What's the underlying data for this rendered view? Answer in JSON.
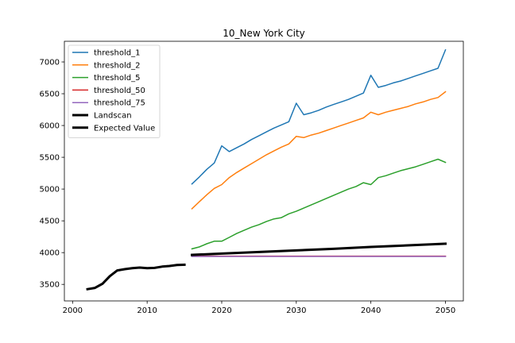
{
  "chart_data": {
    "type": "line",
    "title": "10_New York City",
    "xlabel": "",
    "ylabel": "",
    "xlim": [
      1998.9,
      2052.4
    ],
    "ylim": [
      3240,
      7325
    ],
    "xticks": [
      2000,
      2010,
      2020,
      2030,
      2040,
      2050
    ],
    "yticks": [
      3500,
      4000,
      4500,
      5000,
      5500,
      6000,
      6500,
      7000
    ],
    "grid": false,
    "legend_position": "top-left",
    "series": [
      {
        "name": "threshold_1",
        "color": "#1f77b4",
        "width": 1.5,
        "x": [
          2016,
          2017,
          2018,
          2019,
          2020,
          2021,
          2022,
          2023,
          2024,
          2025,
          2026,
          2027,
          2028,
          2029,
          2030,
          2031,
          2032,
          2033,
          2034,
          2035,
          2036,
          2037,
          2038,
          2039,
          2040,
          2041,
          2042,
          2043,
          2044,
          2045,
          2046,
          2047,
          2048,
          2049,
          2050
        ],
        "y": [
          5080,
          5190,
          5310,
          5410,
          5680,
          5590,
          5650,
          5710,
          5780,
          5840,
          5900,
          5960,
          6010,
          6060,
          6350,
          6170,
          6200,
          6240,
          6290,
          6330,
          6370,
          6410,
          6460,
          6510,
          6790,
          6600,
          6630,
          6670,
          6700,
          6740,
          6780,
          6820,
          6860,
          6900,
          7190
        ]
      },
      {
        "name": "threshold_2",
        "color": "#ff7f0e",
        "width": 1.5,
        "x": [
          2016,
          2017,
          2018,
          2019,
          2020,
          2021,
          2022,
          2023,
          2024,
          2025,
          2026,
          2027,
          2028,
          2029,
          2030,
          2031,
          2032,
          2033,
          2034,
          2035,
          2036,
          2037,
          2038,
          2039,
          2040,
          2041,
          2042,
          2043,
          2044,
          2045,
          2046,
          2047,
          2048,
          2049,
          2050
        ],
        "y": [
          4690,
          4800,
          4910,
          5010,
          5070,
          5180,
          5260,
          5330,
          5400,
          5470,
          5540,
          5600,
          5660,
          5710,
          5830,
          5810,
          5850,
          5880,
          5920,
          5960,
          6000,
          6040,
          6080,
          6120,
          6210,
          6170,
          6210,
          6240,
          6270,
          6300,
          6340,
          6370,
          6410,
          6440,
          6530
        ]
      },
      {
        "name": "threshold_5",
        "color": "#2ca02c",
        "width": 1.5,
        "x": [
          2016,
          2017,
          2018,
          2019,
          2020,
          2021,
          2022,
          2023,
          2024,
          2025,
          2026,
          2027,
          2028,
          2029,
          2030,
          2031,
          2032,
          2033,
          2034,
          2035,
          2036,
          2037,
          2038,
          2039,
          2040,
          2041,
          2042,
          2043,
          2044,
          2045,
          2046,
          2047,
          2048,
          2049,
          2050
        ],
        "y": [
          4060,
          4090,
          4140,
          4180,
          4180,
          4240,
          4300,
          4350,
          4400,
          4440,
          4490,
          4530,
          4550,
          4610,
          4650,
          4700,
          4750,
          4800,
          4850,
          4900,
          4950,
          5000,
          5040,
          5100,
          5070,
          5180,
          5210,
          5250,
          5290,
          5320,
          5350,
          5390,
          5430,
          5470,
          5420
        ]
      },
      {
        "name": "threshold_50",
        "color": "#d62728",
        "width": 1.5,
        "x": [
          2016,
          2050
        ],
        "y": [
          3945,
          3945
        ]
      },
      {
        "name": "threshold_75",
        "color": "#9467bd",
        "width": 1.5,
        "x": [
          2016,
          2050
        ],
        "y": [
          3940,
          3940
        ]
      },
      {
        "name": "Landscan",
        "color": "#000000",
        "width": 3,
        "x": [
          2002,
          2003,
          2004,
          2005,
          2006,
          2007,
          2008,
          2009,
          2010,
          2011,
          2012,
          2013,
          2014,
          2015
        ],
        "y": [
          3425,
          3445,
          3510,
          3630,
          3720,
          3740,
          3755,
          3765,
          3755,
          3760,
          3780,
          3790,
          3805,
          3810
        ]
      },
      {
        "name": "Expected Value",
        "color": "#000000",
        "width": 3,
        "x": [
          2016,
          2020,
          2025,
          2030,
          2035,
          2040,
          2045,
          2050
        ],
        "y": [
          3965,
          3985,
          4010,
          4035,
          4060,
          4090,
          4115,
          4140
        ]
      }
    ]
  }
}
